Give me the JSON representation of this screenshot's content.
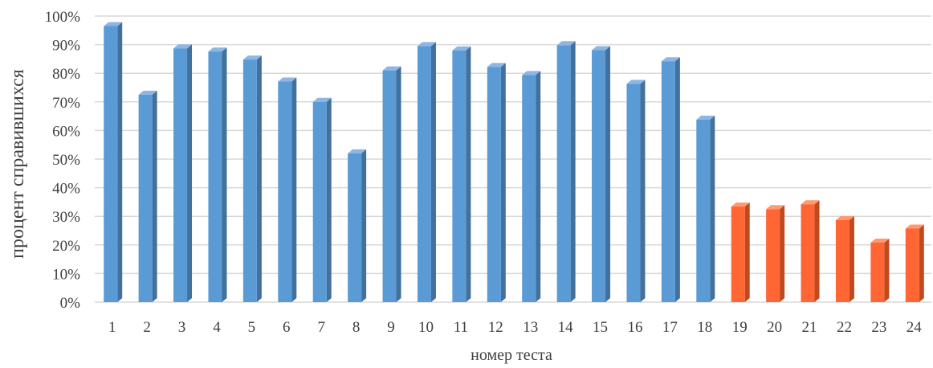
{
  "chart_data": {
    "type": "bar",
    "title": "",
    "xlabel": "номер теста",
    "ylabel": "процент справившихся",
    "ylim": [
      0,
      100
    ],
    "y_unit": "%",
    "grid": true,
    "legend": "none",
    "categories": [
      "1",
      "2",
      "3",
      "4",
      "5",
      "6",
      "7",
      "8",
      "9",
      "10",
      "11",
      "12",
      "13",
      "14",
      "15",
      "16",
      "17",
      "18",
      "19",
      "20",
      "21",
      "22",
      "23",
      "24"
    ],
    "y_ticks": [
      "0%",
      "10%",
      "20%",
      "30%",
      "40%",
      "50%",
      "60%",
      "70%",
      "80%",
      "90%",
      "100%"
    ],
    "values": [
      96.5,
      72.5,
      88.7,
      87.6,
      84.8,
      77.1,
      70.0,
      52.0,
      81.0,
      89.5,
      88.0,
      82.2,
      79.4,
      89.8,
      88.1,
      76.3,
      84.2,
      63.8,
      33.4,
      32.5,
      34.2,
      28.7,
      20.8,
      25.7
    ],
    "colors": {
      "primary": "#5B9BD5",
      "primary_side": "#41719C",
      "primary_top": "#8DB6E2",
      "highlight": "#FF6633",
      "highlight_side": "#C04A1E",
      "highlight_top": "#FF9A70",
      "highlight_from_index": 18,
      "grid": "#D9D9D9"
    }
  }
}
